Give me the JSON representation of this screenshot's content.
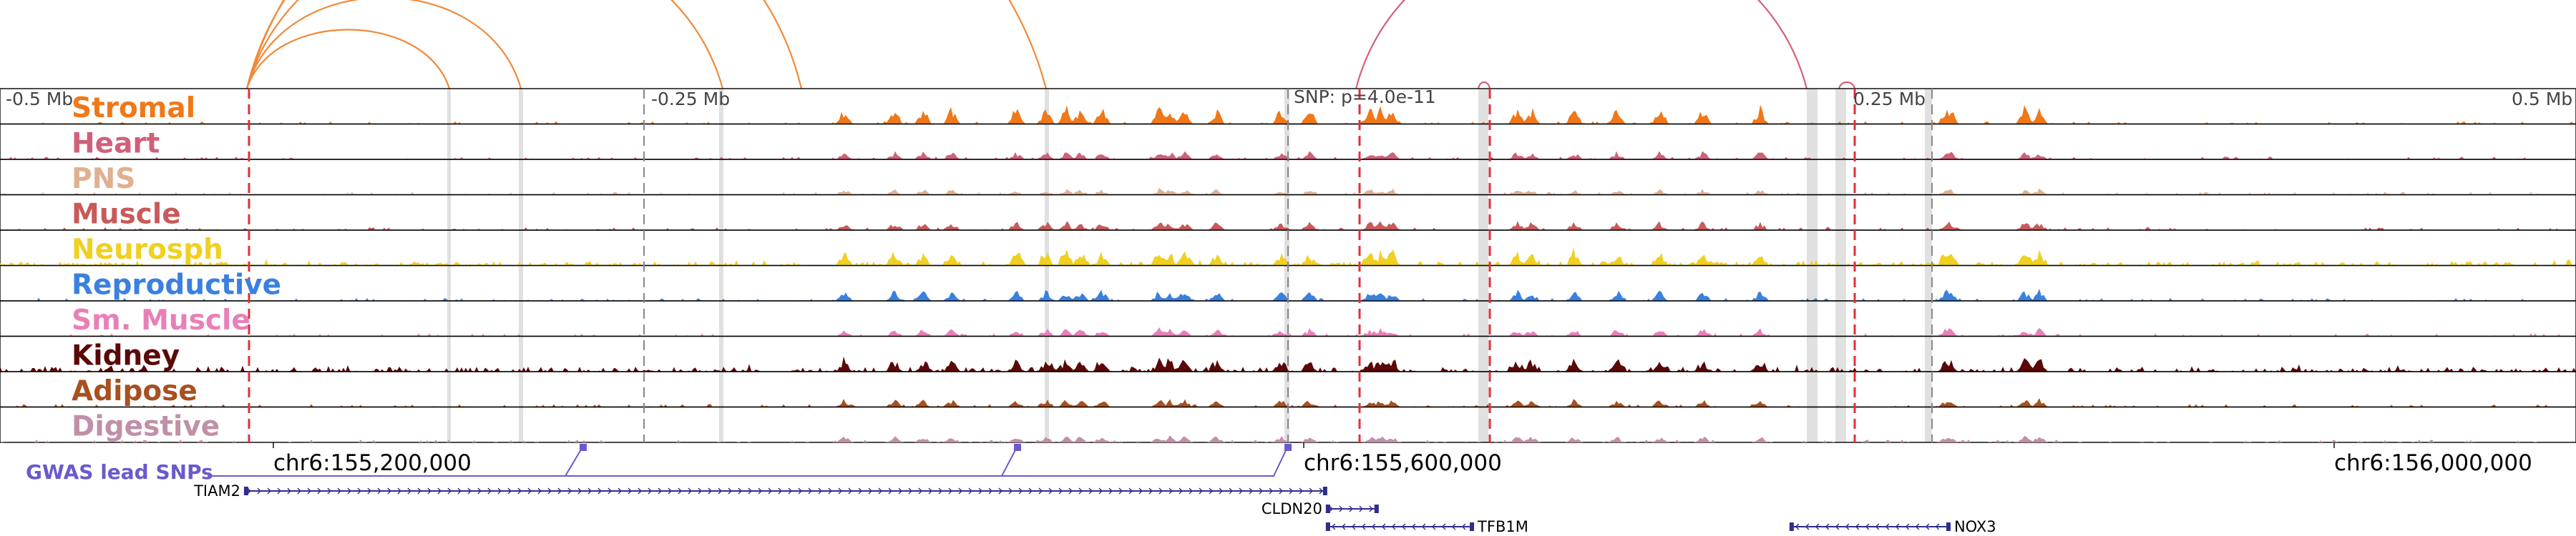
{
  "colors": {
    "snp_line": "#e0303a",
    "gwas": "#6a5acd",
    "gene": "#2e2e8c",
    "highlight": "#d8d8d8",
    "border": "#000000"
  },
  "coords": {
    "left": "-0.5 Mb",
    "m025": "-0.25 Mb",
    "snp": "SNP: p=4.0e-11",
    "p025": "0.25 Mb",
    "right": "0.5 Mb"
  },
  "positions": [
    "chr6:155,200,000",
    "chr6:155,600,000",
    "chr6:156,000,000"
  ],
  "gwas_label": "GWAS lead SNPs",
  "tracks": [
    {
      "name": "Stromal",
      "color": "#f07818"
    },
    {
      "name": "Heart",
      "color": "#d0607a"
    },
    {
      "name": "PNS",
      "color": "#e0b090"
    },
    {
      "name": "Muscle",
      "color": "#c85a5a"
    },
    {
      "name": "Neurosph",
      "color": "#f0d020"
    },
    {
      "name": "Reproductive",
      "color": "#3a80e0"
    },
    {
      "name": "Sm. Muscle",
      "color": "#e880b8"
    },
    {
      "name": "Kidney",
      "color": "#5a0808"
    },
    {
      "name": "Adipose",
      "color": "#a85020"
    },
    {
      "name": "Digestive",
      "color": "#c090a8"
    }
  ],
  "genes": [
    {
      "name": "TIAM2",
      "start": 155155000,
      "end": 155575000,
      "strand": "+",
      "row": 0,
      "label_side": "left"
    },
    {
      "name": "CLDN20",
      "start": 155575000,
      "end": 155595000,
      "strand": "+",
      "row": 1,
      "label_side": "left"
    },
    {
      "name": "TFB1M",
      "start": 155575000,
      "end": 155632000,
      "strand": "-",
      "row": 2,
      "label_side": "right"
    },
    {
      "name": "NOX3",
      "start": 155755000,
      "end": 155817000,
      "strand": "-",
      "row": 2,
      "label_side": "right"
    }
  ]
}
